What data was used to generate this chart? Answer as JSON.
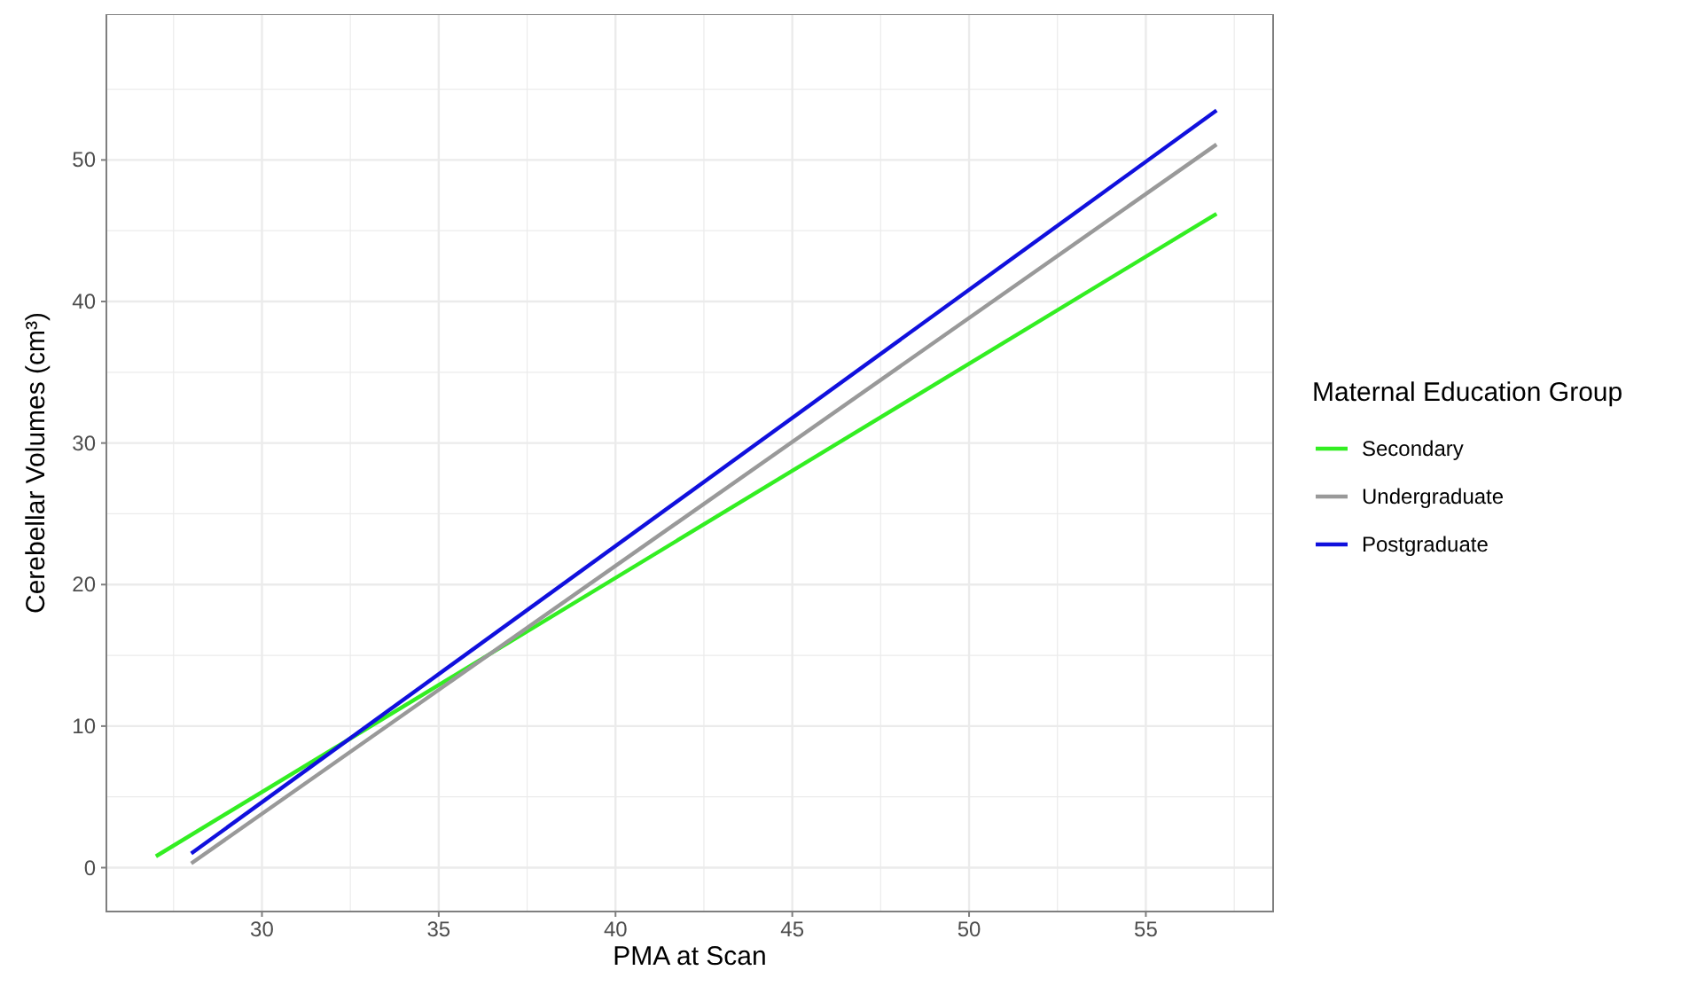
{
  "chart_data": {
    "type": "line",
    "xlabel": "PMA at Scan",
    "ylabel": "Cerebellar Volumes (cm³)",
    "legend_title": "Maternal Education Group",
    "legend": "right",
    "grid": true,
    "marker": "none",
    "line_style": "solid",
    "xlim": [
      25.6,
      58.6
    ],
    "ylim": [
      -3.1,
      60.3
    ],
    "xticks": [
      {
        "value": 27.5,
        "label": null
      },
      30,
      {
        "value": 32.5,
        "label": null
      },
      35,
      {
        "value": 37.5,
        "label": null
      },
      40,
      {
        "value": 42.5,
        "label": null
      },
      45,
      {
        "value": 47.5,
        "label": null
      },
      50,
      {
        "value": 52.5,
        "label": null
      },
      55,
      {
        "value": 57.5,
        "label": null
      }
    ],
    "yticks": [
      0,
      {
        "value": 5,
        "label": null
      },
      10,
      {
        "value": 15,
        "label": null
      },
      20,
      {
        "value": 25,
        "label": null
      },
      30,
      {
        "value": 35,
        "label": null
      },
      40,
      {
        "value": 45,
        "label": null
      },
      50,
      {
        "value": 55,
        "label": null
      }
    ],
    "series": [
      {
        "name": "Secondary",
        "color": "#33ee22",
        "x": [
          27,
          57
        ],
        "values": [
          0.8,
          46.2
        ]
      },
      {
        "name": "Undergraduate",
        "color": "#999999",
        "x": [
          28,
          57
        ],
        "values": [
          0.3,
          51.1
        ]
      },
      {
        "name": "Postgraduate",
        "color": "#1010dd",
        "x": [
          28,
          57
        ],
        "values": [
          1.0,
          53.5
        ]
      }
    ]
  }
}
